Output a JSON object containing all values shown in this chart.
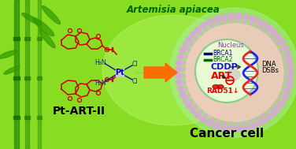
{
  "title_italic": "Artemisia apiacea",
  "label_pt": "Pt-ART-II",
  "label_cancer": "Cancer cell",
  "label_nucleus": "Nucleus",
  "label_cddp": "CDDP",
  "label_art": "ART",
  "label_rad51": "RAD51↓",
  "label_dna": "DNA",
  "label_dsbs": "DSBs",
  "label_brca1": "BRCA1",
  "label_brca2": "BRCA2",
  "bg_green": "#88DD22",
  "bamboo_dark": "#228800",
  "cell_membrane_color": "#D8A8D8",
  "cell_body_color": "#F8C8C8",
  "nucleus_fill": "#E8FFD8",
  "nucleus_border": "#88CC88",
  "arrow_color": "#FF6600",
  "cddp_color": "#1818CC",
  "art_color": "#EE0000",
  "rad51_color": "#EE0000",
  "brca1_color": "#000088",
  "brca2_color": "#006600",
  "pt_struct_color": "#CC0000",
  "pt_text_color": "#0000BB",
  "pt_ligand_color": "#222288",
  "dna_blue": "#2222EE",
  "dna_red": "#EE2222",
  "figsize": [
    3.76,
    1.89
  ],
  "dpi": 100
}
